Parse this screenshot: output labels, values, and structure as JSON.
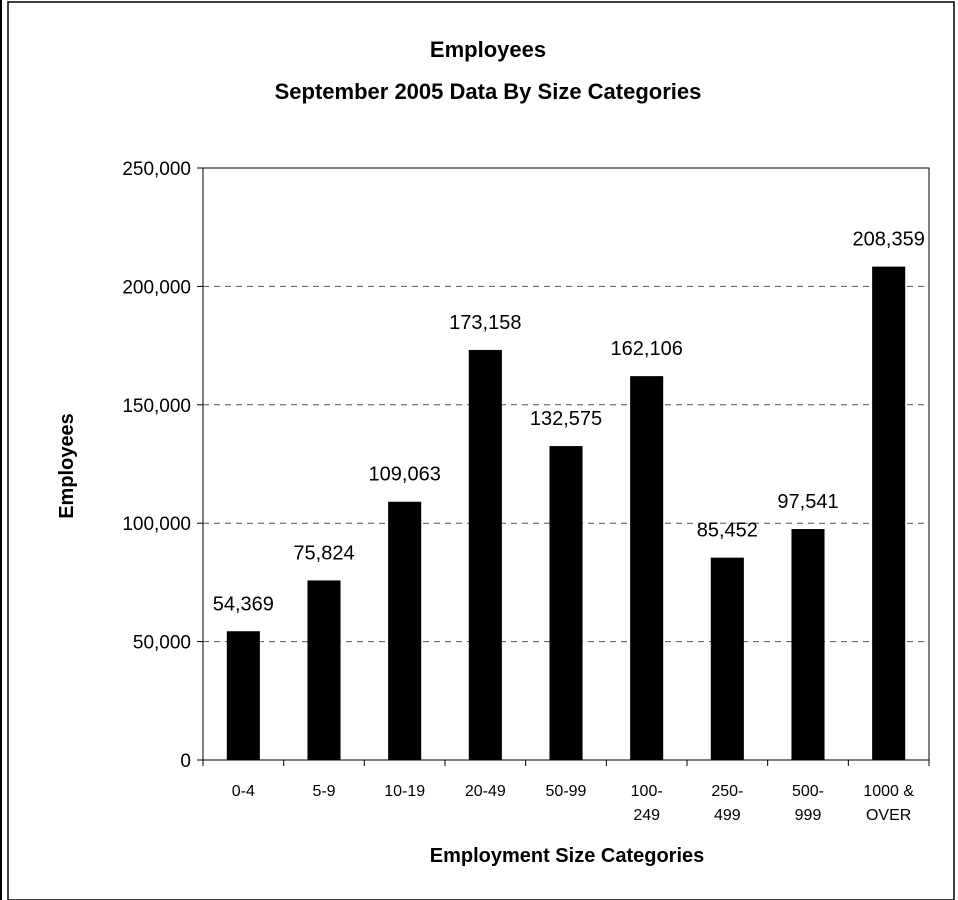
{
  "chart_data": {
    "type": "bar",
    "title": "Employees",
    "subtitle": "September 2005 Data By Size Categories",
    "xlabel": "Employment Size Categories",
    "ylabel": "Employees",
    "ylim": [
      0,
      250000
    ],
    "yticks": [
      0,
      50000,
      100000,
      150000,
      200000,
      250000
    ],
    "ytick_labels": [
      "0",
      "50,000",
      "100,000",
      "150,000",
      "200,000",
      "250,000"
    ],
    "grid": "horizontal dashed",
    "legend": "none",
    "categories": [
      [
        "0-4"
      ],
      [
        "5-9"
      ],
      [
        "10-19"
      ],
      [
        "20-49"
      ],
      [
        "50-99"
      ],
      [
        "100-",
        "249"
      ],
      [
        "250-",
        "499"
      ],
      [
        "500-",
        "999"
      ],
      [
        "1000 &",
        "OVER"
      ]
    ],
    "values": [
      54369,
      75824,
      109063,
      173158,
      132575,
      162106,
      85452,
      97541,
      208359
    ],
    "value_labels": [
      "54,369",
      "75,824",
      "109,063",
      "173,158",
      "132,575",
      "162,106",
      "85,452",
      "97,541",
      "208,359"
    ],
    "bar_color": "#000000",
    "grid_color": "#555555"
  }
}
